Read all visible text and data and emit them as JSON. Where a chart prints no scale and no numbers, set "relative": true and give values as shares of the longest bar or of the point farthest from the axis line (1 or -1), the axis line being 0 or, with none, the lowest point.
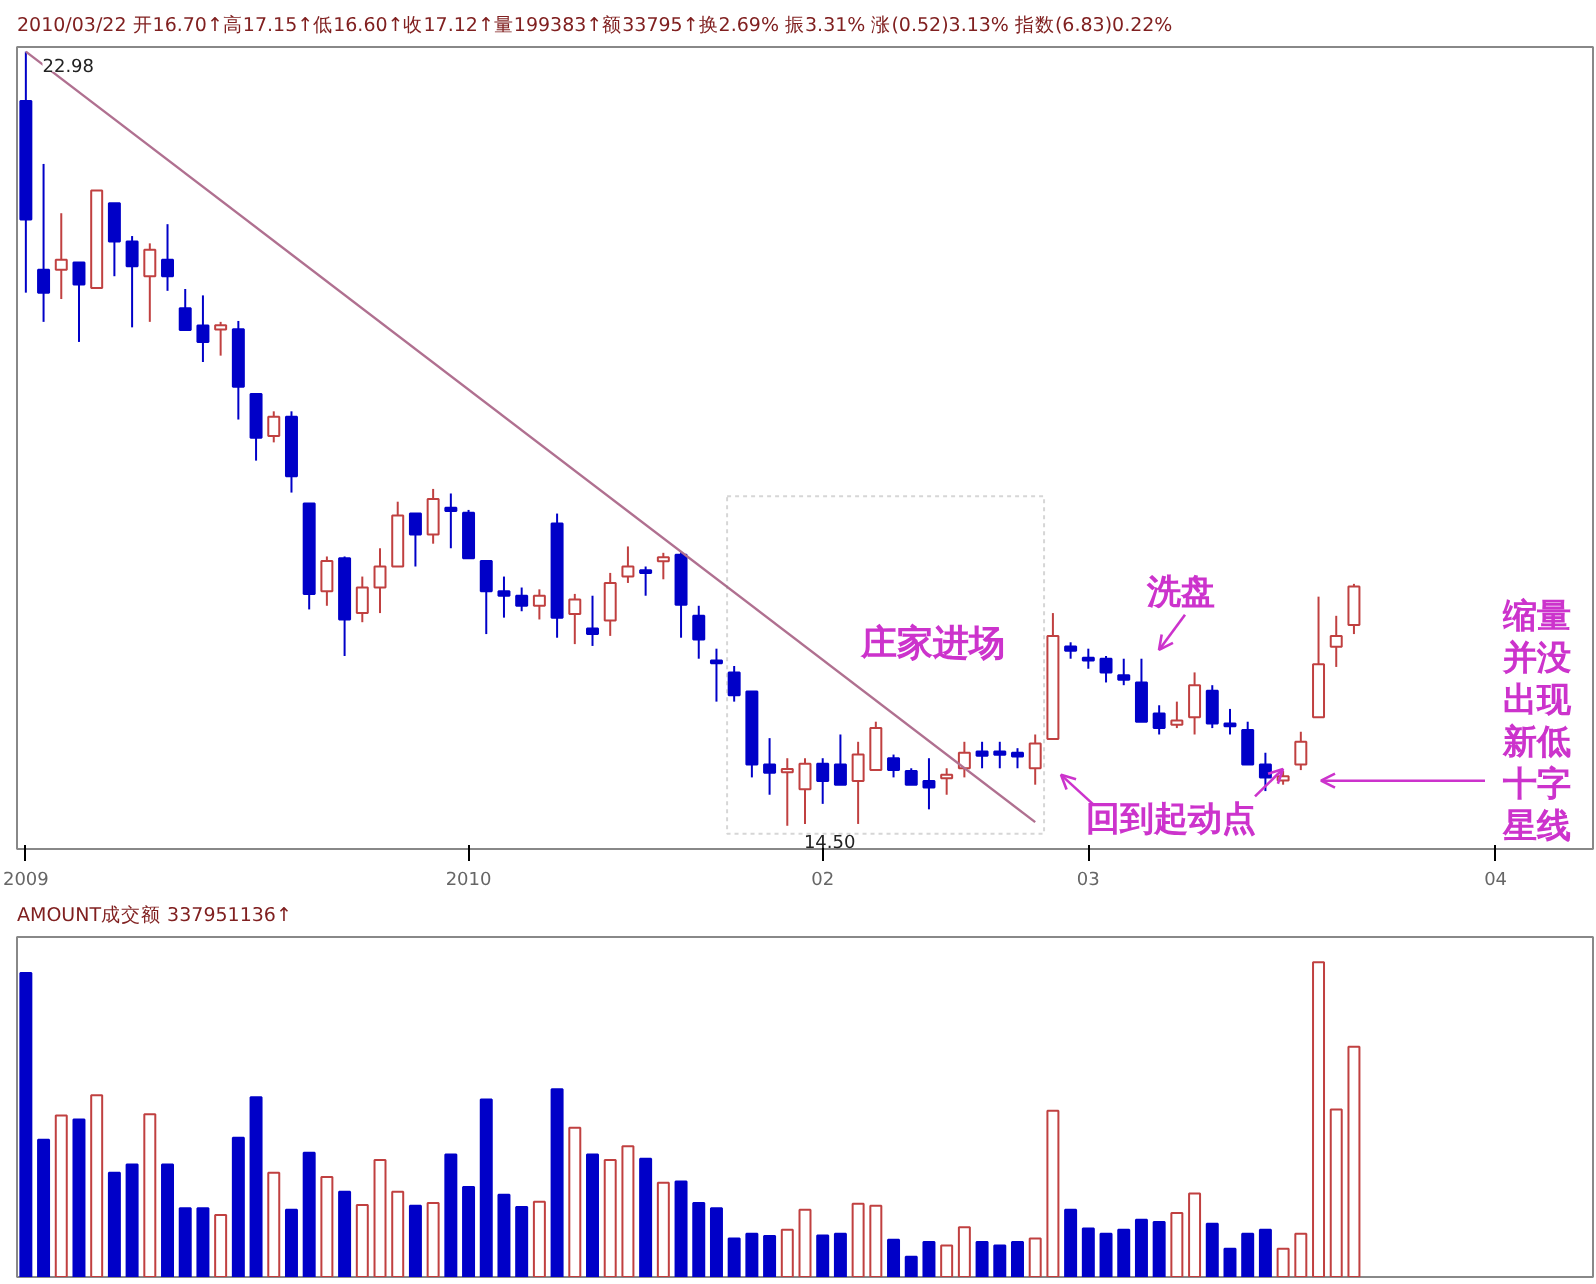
{
  "chart_data": [
    {
      "type": "candlestick",
      "title": "2010/03/22 开16.70↑高17.15↑低16.60↑收17.12↑量199383↑额33795↑换2.69% 振3.31% 涨(0.52)3.13% 指数(6.83)0.22%",
      "categories": [
        "2009",
        null,
        null,
        null,
        null,
        null,
        null,
        null,
        null,
        null,
        null,
        null,
        null,
        null,
        null,
        null,
        null,
        null,
        null,
        null,
        null,
        null,
        null,
        null,
        null,
        "2010",
        null,
        null,
        null,
        null,
        null,
        null,
        null,
        null,
        null,
        null,
        null,
        null,
        null,
        null,
        null,
        null,
        null,
        null,
        null,
        "02",
        null,
        null,
        null,
        null,
        null,
        null,
        null,
        null,
        null,
        null,
        null,
        null,
        null,
        null,
        "03",
        null,
        null,
        null,
        null,
        null,
        null,
        null,
        null,
        null,
        null,
        null,
        null,
        null,
        null,
        null,
        null,
        null,
        null,
        null,
        null,
        null,
        null,
        "04",
        null,
        null,
        null,
        null,
        null
      ],
      "ohlc": [
        [
          22.44,
          22.98,
          20.34,
          21.14
        ],
        [
          20.59,
          21.75,
          20.02,
          20.34
        ],
        [
          20.59,
          21.21,
          20.27,
          20.7
        ],
        [
          20.67,
          20.67,
          19.8,
          20.43
        ],
        [
          20.39,
          21.46,
          20.39,
          21.46
        ],
        [
          21.32,
          21.32,
          20.52,
          20.9
        ],
        [
          20.9,
          20.96,
          19.96,
          20.63
        ],
        [
          20.52,
          20.88,
          20.02,
          20.81
        ],
        [
          20.7,
          21.09,
          20.36,
          20.52
        ],
        [
          20.17,
          20.38,
          19.93,
          19.93
        ],
        [
          19.98,
          20.31,
          19.58,
          19.8
        ],
        [
          19.95,
          20.02,
          19.65,
          19.97
        ],
        [
          19.94,
          20.03,
          18.95,
          19.31
        ],
        [
          19.23,
          19.23,
          18.5,
          18.75
        ],
        [
          18.77,
          19.04,
          18.7,
          18.98
        ],
        [
          18.98,
          19.04,
          18.15,
          18.33
        ],
        [
          18.03,
          18.03,
          16.87,
          17.04
        ],
        [
          17.07,
          17.45,
          16.91,
          17.4
        ],
        [
          17.43,
          17.45,
          16.36,
          16.76
        ],
        [
          16.83,
          17.23,
          16.73,
          17.11
        ],
        [
          17.11,
          17.54,
          16.83,
          17.34
        ],
        [
          17.34,
          18.05,
          17.34,
          17.9
        ],
        [
          17.92,
          17.92,
          17.34,
          17.69
        ],
        [
          17.69,
          18.19,
          17.59,
          18.08
        ],
        [
          17.97,
          18.14,
          17.54,
          17.96
        ],
        [
          17.93,
          17.96,
          17.43,
          17.43
        ],
        [
          17.4,
          17.4,
          16.6,
          17.07
        ],
        [
          17.07,
          17.23,
          16.78,
          17.02
        ],
        [
          17.02,
          17.11,
          16.85,
          16.91
        ],
        [
          16.91,
          17.09,
          16.76,
          17.02
        ],
        [
          17.81,
          17.92,
          16.56,
          16.78
        ],
        [
          16.82,
          17.04,
          16.49,
          16.98
        ],
        [
          16.66,
          17.02,
          16.47,
          16.6
        ],
        [
          16.75,
          17.27,
          16.58,
          17.16
        ],
        [
          17.23,
          17.56,
          17.16,
          17.34
        ],
        [
          17.3,
          17.34,
          17.02,
          17.27
        ],
        [
          17.41,
          17.49,
          17.2,
          17.43
        ],
        [
          17.47,
          17.5,
          16.56,
          16.92
        ],
        [
          16.8,
          16.91,
          16.33,
          16.54
        ],
        [
          16.31,
          16.44,
          15.86,
          16.28
        ],
        [
          16.18,
          16.25,
          15.86,
          15.93
        ],
        [
          15.97,
          15.97,
          15.03,
          15.17
        ],
        [
          15.17,
          15.46,
          14.84,
          15.08
        ],
        [
          15.1,
          15.24,
          14.5,
          15.11
        ],
        [
          14.9,
          15.24,
          14.52,
          15.18
        ],
        [
          15.18,
          15.24,
          14.74,
          14.99
        ],
        [
          15.17,
          15.5,
          14.95,
          14.95
        ],
        [
          14.99,
          15.42,
          14.52,
          15.28
        ],
        [
          15.11,
          15.64,
          15.11,
          15.57
        ],
        [
          15.24,
          15.28,
          15.03,
          15.11
        ],
        [
          15.1,
          15.13,
          14.95,
          14.95
        ],
        [
          14.99,
          15.24,
          14.68,
          14.92
        ],
        [
          15.02,
          15.13,
          14.84,
          15.06
        ],
        [
          15.13,
          15.42,
          15.03,
          15.3
        ],
        [
          15.3,
          15.42,
          15.13,
          15.28
        ],
        [
          15.3,
          15.42,
          15.13,
          15.29
        ],
        [
          15.3,
          15.35,
          15.13,
          15.26
        ],
        [
          15.13,
          15.5,
          14.95,
          15.4
        ],
        [
          15.45,
          16.83,
          15.45,
          16.58
        ],
        [
          16.45,
          16.51,
          16.33,
          16.43
        ],
        [
          16.34,
          16.44,
          16.22,
          16.31
        ],
        [
          16.33,
          16.36,
          16.07,
          16.18
        ],
        [
          16.15,
          16.33,
          16.04,
          16.1
        ],
        [
          16.07,
          16.33,
          15.64,
          15.64
        ],
        [
          15.73,
          15.82,
          15.5,
          15.57
        ],
        [
          15.62,
          15.86,
          15.57,
          15.64
        ],
        [
          15.69,
          16.18,
          15.5,
          16.04
        ],
        [
          15.98,
          16.04,
          15.57,
          15.62
        ],
        [
          15.62,
          15.78,
          15.5,
          15.59
        ],
        [
          15.55,
          15.64,
          15.17,
          15.17
        ],
        [
          15.17,
          15.3,
          14.88,
          15.03
        ],
        [
          15.01,
          15.1,
          14.95,
          15.03
        ],
        [
          15.17,
          15.53,
          15.11,
          15.42
        ],
        [
          15.69,
          17.01,
          15.69,
          16.27
        ],
        [
          16.46,
          16.8,
          16.24,
          16.58
        ],
        [
          16.7,
          17.15,
          16.6,
          17.12
        ],
        null,
        null,
        null,
        null,
        null,
        null,
        null,
        null,
        null,
        null,
        null,
        null,
        null
      ],
      "colors": [
        "#0000c8",
        "#0000c8",
        "#c04040",
        "#0000c8",
        "#c04040",
        "#0000c8",
        "#0000c8",
        "#c04040",
        "#0000c8",
        "#0000c8",
        "#0000c8",
        "#c04040",
        "#0000c8",
        "#0000c8",
        "#c04040",
        "#0000c8",
        "#0000c8",
        "#c04040",
        "#0000c8",
        "#c04040",
        "#c04040",
        "#c04040",
        "#0000c8",
        "#c04040",
        "#0000c8",
        "#0000c8",
        "#0000c8",
        "#0000c8",
        "#0000c8",
        "#c04040",
        "#0000c8",
        "#c04040",
        "#0000c8",
        "#c04040",
        "#c04040",
        "#0000c8",
        "#c04040",
        "#0000c8",
        "#0000c8",
        "#0000c8",
        "#0000c8",
        "#0000c8",
        "#0000c8",
        "#c04040",
        "#c04040",
        "#0000c8",
        "#0000c8",
        "#c04040",
        "#c04040",
        "#0000c8",
        "#0000c8",
        "#0000c8",
        "#c04040",
        "#c04040",
        "#0000c8",
        "#0000c8",
        "#0000c8",
        "#c04040",
        "#c04040",
        "#0000c8",
        "#0000c8",
        "#0000c8",
        "#0000c8",
        "#0000c8",
        "#0000c8",
        "#c04040",
        "#c04040",
        "#0000c8",
        "#0000c8",
        "#0000c8",
        "#0000c8",
        "#c04040",
        "#c04040",
        "#c04040",
        "#c04040",
        "#c04040",
        null,
        null,
        null,
        null,
        null,
        null,
        null,
        null,
        null,
        null,
        null,
        null,
        null
      ],
      "series": [
        {
          "type": "line",
          "color": "#b07090",
          "values": [
            22.98,
            null,
            null,
            null,
            null,
            null,
            null,
            null,
            null,
            null,
            null,
            null,
            null,
            null,
            null,
            null,
            null,
            null,
            null,
            null,
            null,
            null,
            null,
            null,
            null,
            null,
            null,
            null,
            null,
            null,
            null,
            null,
            null,
            null,
            null,
            null,
            null,
            null,
            null,
            null,
            null,
            null,
            null,
            null,
            null,
            null,
            null,
            null,
            null,
            null,
            null,
            null,
            null,
            null,
            null,
            null,
            null,
            14.54,
            null,
            null,
            null,
            null,
            null,
            null,
            null,
            null,
            null,
            null,
            null,
            null,
            null,
            null,
            null,
            null,
            null,
            null,
            null,
            null,
            null,
            null,
            null,
            null,
            null,
            null,
            null,
            null,
            null,
            null,
            null
          ]
        }
      ],
      "annotations": [
        "庄家进场",
        "洗盘",
        "回到起动点",
        "缩量并没出现新低十字星线",
        "22.98",
        "14.50"
      ],
      "tick_labels": "x"
    },
    {
      "type": "bar",
      "title": "AMOUNT成交额 337951136↑",
      "relative": true,
      "tick_labels": false,
      "categories": [
        null,
        null,
        null,
        null,
        null,
        null,
        null,
        null,
        null,
        null,
        null,
        null,
        null,
        null,
        null,
        null,
        null,
        null,
        null,
        null,
        null,
        null,
        null,
        null,
        null,
        null,
        null,
        null,
        null,
        null,
        null,
        null,
        null,
        null,
        null,
        null,
        null,
        null,
        null,
        null,
        null,
        null,
        null,
        null,
        null,
        null,
        null,
        null,
        null,
        null,
        null,
        null,
        null,
        null,
        null,
        null,
        null,
        null,
        null,
        null,
        null,
        null,
        null,
        null,
        null,
        null,
        null,
        null,
        null,
        null,
        null,
        null,
        null,
        null,
        null,
        null,
        null,
        null,
        null,
        null,
        null,
        null,
        null,
        null,
        null,
        null,
        null,
        null,
        null
      ],
      "values": [
        0.966,
        0.436,
        0.513,
        0.5,
        0.577,
        0.331,
        0.357,
        0.517,
        0.357,
        0.218,
        0.218,
        0.197,
        0.442,
        0.571,
        0.331,
        0.214,
        0.395,
        0.318,
        0.271,
        0.229,
        0.372,
        0.271,
        0.226,
        0.235,
        0.389,
        0.286,
        0.564,
        0.261,
        0.222,
        0.239,
        0.596,
        0.474,
        0.389,
        0.372,
        0.415,
        0.376,
        0.299,
        0.303,
        0.235,
        0.218,
        0.122,
        0.137,
        0.13,
        0.15,
        0.214,
        0.132,
        0.137,
        0.233,
        0.226,
        0.118,
        0.064,
        0.111,
        0.1,
        0.158,
        0.111,
        0.1,
        0.111,
        0.122,
        0.528,
        0.214,
        0.154,
        0.137,
        0.15,
        0.182,
        0.175,
        0.203,
        0.265,
        0.169,
        0.09,
        0.137,
        0.15,
        0.09,
        0.137,
        1,
        0.532,
        0.731,
        null,
        null,
        null,
        null,
        null,
        null,
        null,
        null,
        null,
        null,
        null,
        null,
        null
      ],
      "colors": [
        "#0000c8",
        "#0000c8",
        "#c04040",
        "#0000c8",
        "#c04040",
        "#0000c8",
        "#0000c8",
        "#c04040",
        "#0000c8",
        "#0000c8",
        "#0000c8",
        "#c04040",
        "#0000c8",
        "#0000c8",
        "#c04040",
        "#0000c8",
        "#0000c8",
        "#c04040",
        "#0000c8",
        "#c04040",
        "#c04040",
        "#c04040",
        "#0000c8",
        "#c04040",
        "#0000c8",
        "#0000c8",
        "#0000c8",
        "#0000c8",
        "#0000c8",
        "#c04040",
        "#0000c8",
        "#c04040",
        "#0000c8",
        "#c04040",
        "#c04040",
        "#0000c8",
        "#c04040",
        "#0000c8",
        "#0000c8",
        "#0000c8",
        "#0000c8",
        "#0000c8",
        "#0000c8",
        "#c04040",
        "#c04040",
        "#0000c8",
        "#0000c8",
        "#c04040",
        "#c04040",
        "#0000c8",
        "#0000c8",
        "#0000c8",
        "#c04040",
        "#c04040",
        "#0000c8",
        "#0000c8",
        "#0000c8",
        "#c04040",
        "#c04040",
        "#0000c8",
        "#0000c8",
        "#0000c8",
        "#0000c8",
        "#0000c8",
        "#0000c8",
        "#c04040",
        "#c04040",
        "#0000c8",
        "#0000c8",
        "#0000c8",
        "#0000c8",
        "#c04040",
        "#c04040",
        "#c04040",
        "#c04040",
        "#c04040",
        null,
        null,
        null,
        null,
        null,
        null,
        null,
        null,
        null,
        null,
        null,
        null,
        null
      ]
    }
  ]
}
